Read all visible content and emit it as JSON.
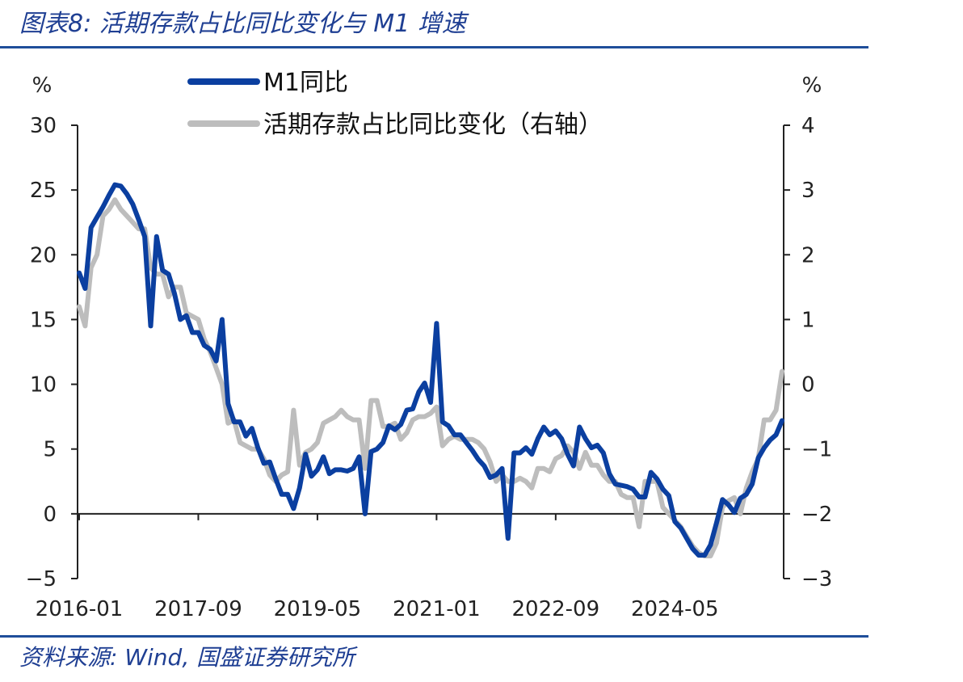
{
  "header": {
    "title": "图表8:  活期存款占比同比变化与 M1 增速"
  },
  "footer": {
    "source": "资料来源:  Wind,  国盛证券研究所"
  },
  "chart_data": {
    "type": "line",
    "left_unit": "%",
    "right_unit": "%",
    "y_left": {
      "min": -5,
      "max": 30,
      "ticks": [
        -5,
        0,
        5,
        10,
        15,
        20,
        25,
        30
      ],
      "tick_labels": [
        "−5",
        "0",
        "5",
        "10",
        "15",
        "20",
        "25",
        "30"
      ]
    },
    "y_right": {
      "min": -3,
      "max": 4,
      "ticks": [
        -3,
        -2,
        -1,
        0,
        1,
        2,
        3,
        4
      ],
      "tick_labels": [
        "−3",
        "−2",
        "−1",
        "0",
        "1",
        "2",
        "3",
        "4"
      ]
    },
    "x_range": [
      "2016-01",
      "2025-03"
    ],
    "x_tick_labels": [
      "2016-01",
      "2017-09",
      "2019-05",
      "2021-01",
      "2022-09",
      "2024-05"
    ],
    "grid": false,
    "legend_position": "top-center",
    "series": [
      {
        "name": "M1同比",
        "axis": "left",
        "color": "#0b3fa0",
        "values": [
          18.6,
          17.4,
          22.1,
          22.9,
          23.7,
          24.6,
          25.4,
          25.3,
          24.7,
          23.9,
          22.7,
          21.4,
          14.5,
          21.4,
          18.8,
          18.5,
          17.0,
          15.0,
          15.3,
          14.0,
          14.0,
          13.0,
          12.7,
          11.8,
          15.0,
          8.5,
          7.1,
          7.1,
          6.0,
          6.6,
          5.1,
          3.9,
          4.0,
          2.7,
          1.5,
          1.5,
          0.4,
          2.0,
          4.6,
          2.9,
          3.4,
          4.4,
          3.1,
          3.4,
          3.4,
          3.3,
          3.5,
          4.4,
          0.0,
          4.8,
          5.0,
          5.5,
          6.8,
          6.5,
          6.9,
          8.0,
          8.1,
          9.4,
          10.1,
          8.6,
          14.7,
          7.1,
          6.8,
          6.1,
          6.1,
          5.5,
          4.9,
          4.2,
          3.7,
          2.8,
          3.0,
          3.5,
          -1.9,
          4.7,
          4.7,
          5.1,
          4.6,
          5.8,
          6.7,
          6.1,
          6.4,
          5.8,
          4.6,
          3.7,
          6.7,
          5.8,
          5.1,
          5.3,
          4.7,
          3.1,
          2.3,
          2.2,
          2.1,
          1.9,
          1.3,
          1.3,
          3.2,
          2.7,
          1.9,
          1.4,
          -0.6,
          -1.1,
          -1.9,
          -2.7,
          -3.2,
          -3.2,
          -2.4,
          -0.7,
          1.1,
          0.7,
          0.1,
          1.2,
          1.5,
          2.3,
          4.3,
          5.1,
          5.7,
          6.1,
          7.2
        ]
      },
      {
        "name": "活期存款占比同比变化（右轴）",
        "axis": "right",
        "color": "#bdbdbd",
        "values": [
          1.2,
          0.9,
          1.8,
          2.0,
          2.6,
          2.7,
          2.85,
          2.7,
          2.6,
          2.5,
          2.4,
          2.4,
          1.8,
          1.7,
          1.7,
          1.35,
          1.5,
          1.5,
          1.1,
          1.05,
          1.0,
          0.7,
          0.5,
          0.25,
          0.0,
          -0.6,
          -0.55,
          -0.9,
          -0.95,
          -1.0,
          -1.0,
          -1.15,
          -1.4,
          -1.5,
          -1.4,
          -1.35,
          -0.4,
          -1.25,
          -1.05,
          -1.0,
          -0.9,
          -0.6,
          -0.55,
          -0.5,
          -0.4,
          -0.5,
          -0.55,
          -0.55,
          -1.3,
          -0.25,
          -0.25,
          -0.65,
          -0.65,
          -0.6,
          -0.85,
          -0.75,
          -0.55,
          -0.5,
          -0.5,
          -0.45,
          -0.35,
          -0.95,
          -0.85,
          -0.8,
          -0.85,
          -0.85,
          -0.85,
          -0.9,
          -1.0,
          -1.2,
          -1.5,
          -1.4,
          -1.5,
          -1.5,
          -1.45,
          -1.5,
          -1.6,
          -1.3,
          -1.3,
          -1.35,
          -1.15,
          -1.1,
          -0.95,
          -1.05,
          -1.3,
          -1.05,
          -1.25,
          -1.25,
          -1.4,
          -1.5,
          -1.5,
          -1.7,
          -1.75,
          -1.75,
          -2.2,
          -1.5,
          -1.5,
          -1.5,
          -1.9,
          -2.0,
          -2.1,
          -2.2,
          -2.35,
          -2.5,
          -2.6,
          -2.65,
          -2.65,
          -2.45,
          -1.9,
          -1.8,
          -1.75,
          -2.0,
          -1.6,
          -1.35,
          -1.15,
          -0.55,
          -0.55,
          -0.4,
          0.2
        ]
      }
    ]
  }
}
